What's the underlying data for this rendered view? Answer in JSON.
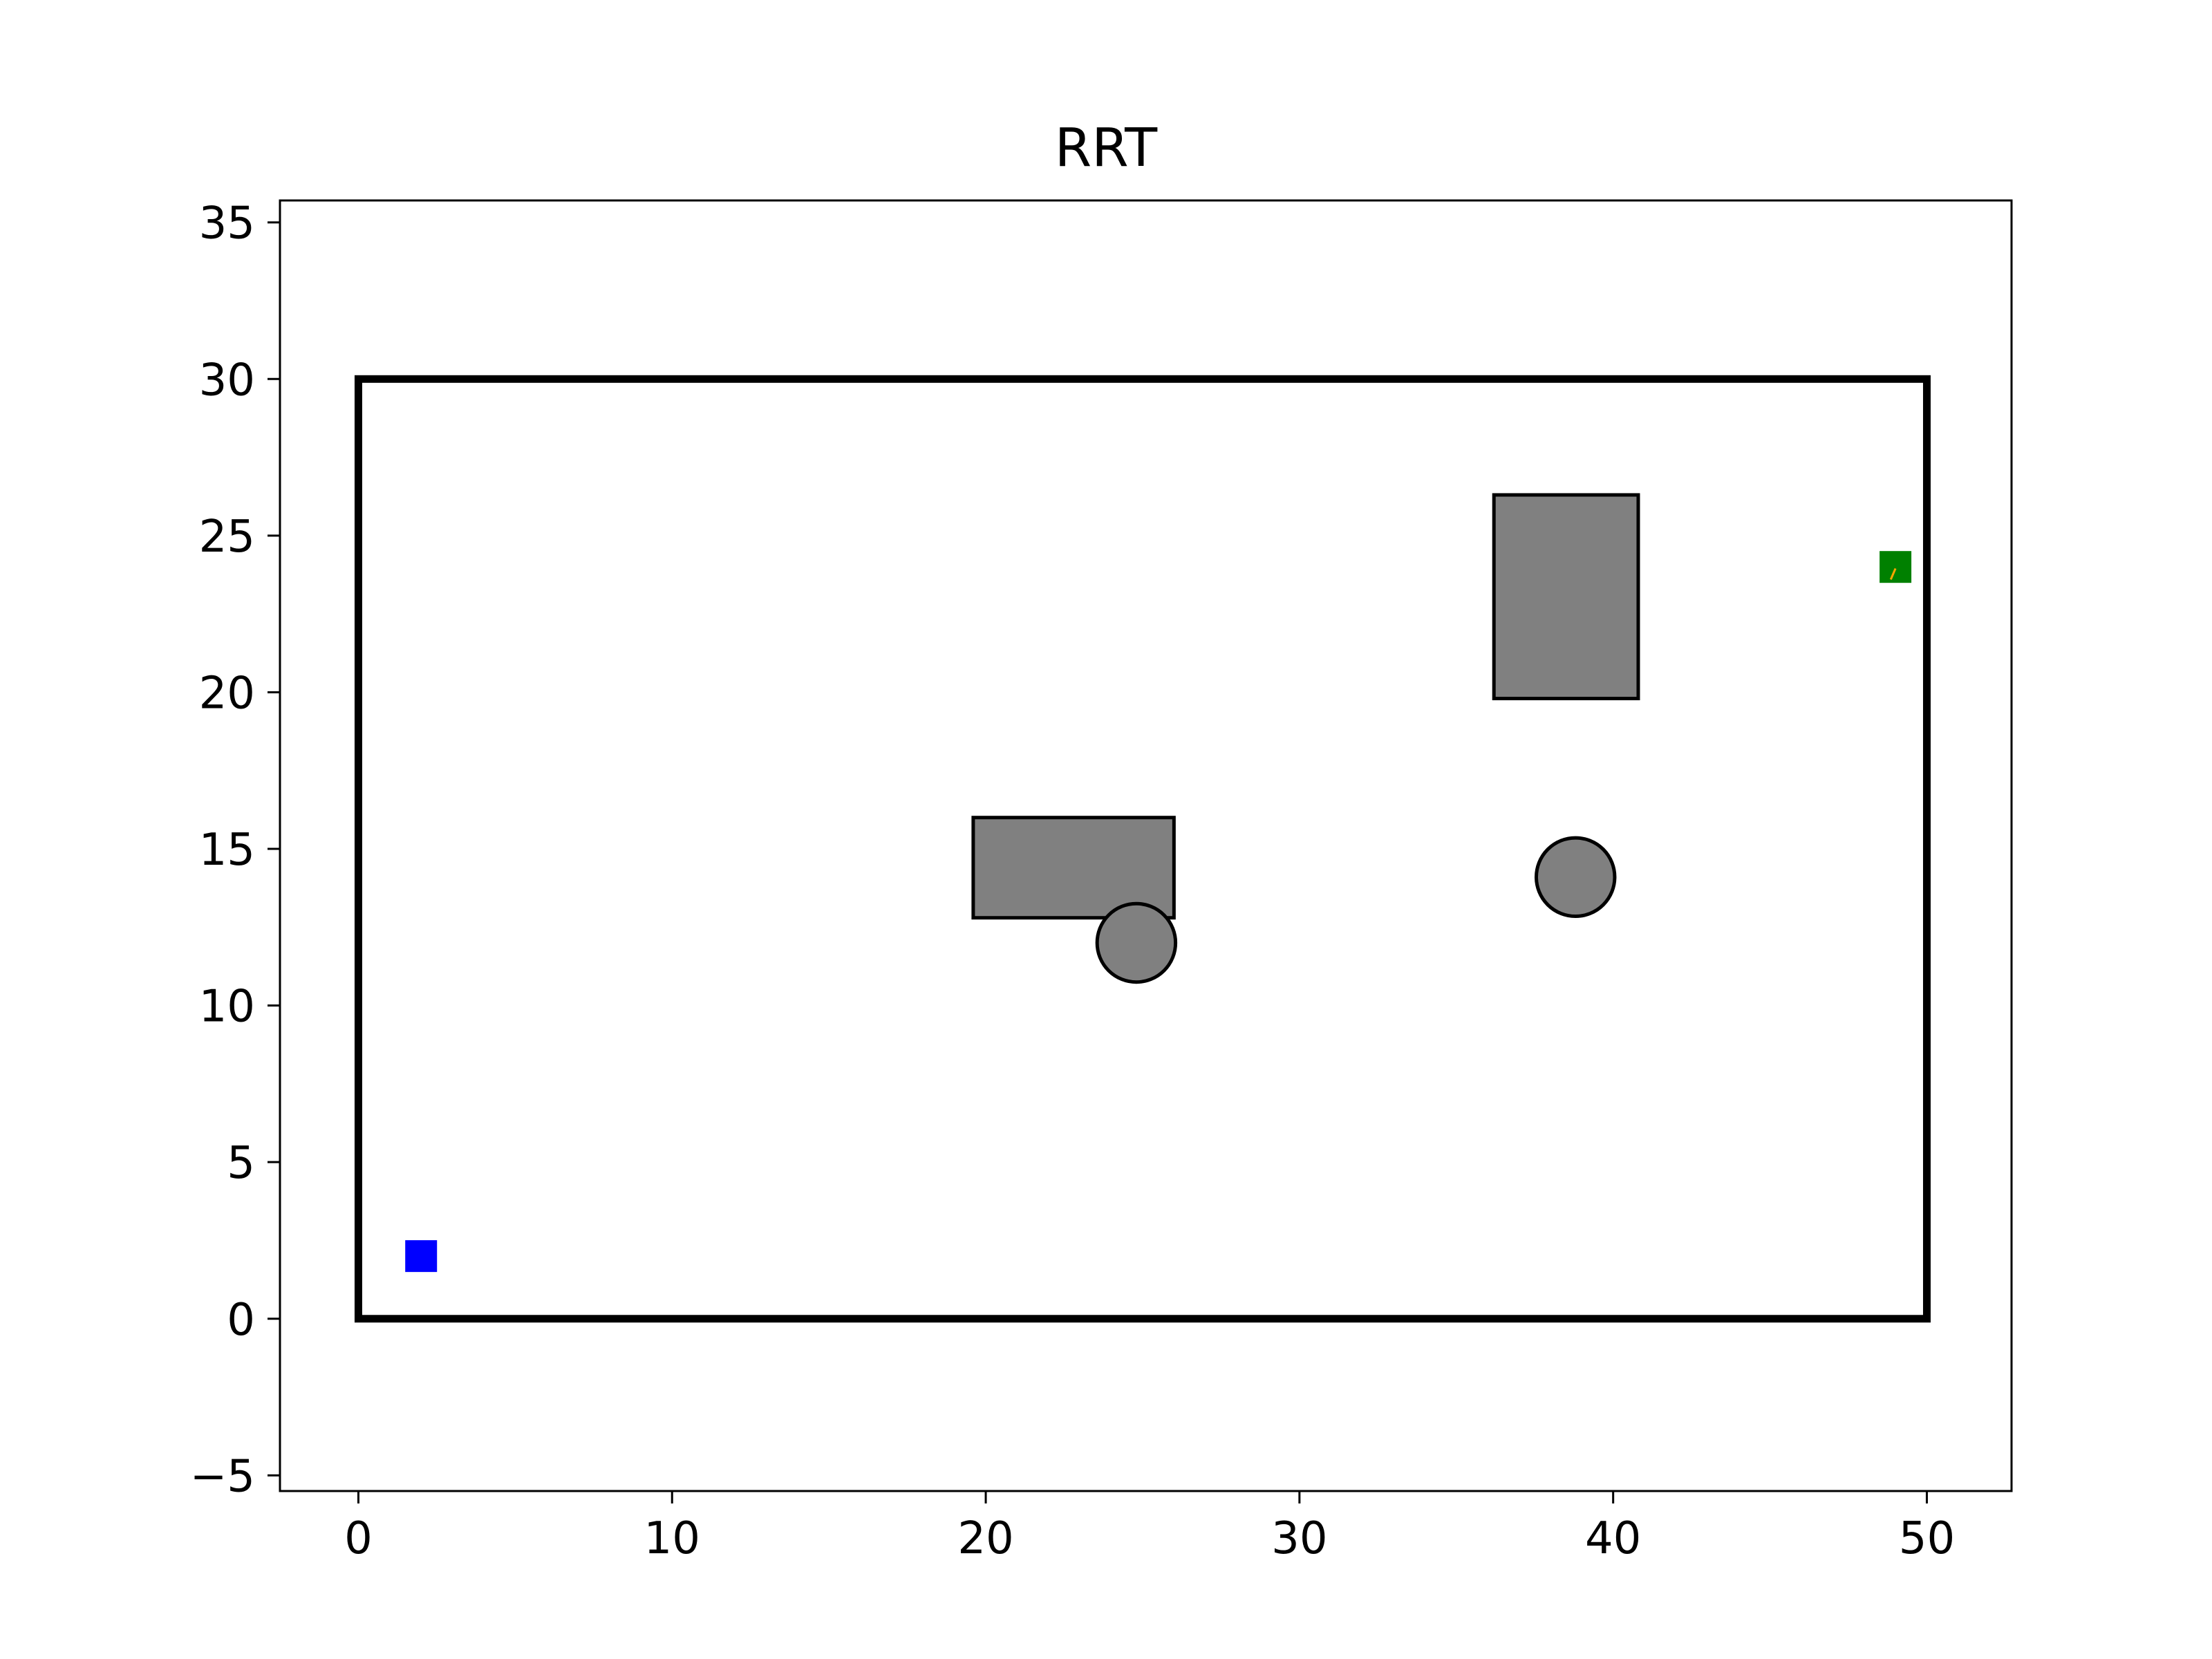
{
  "chart_data": {
    "type": "scatter",
    "title": "RRT",
    "xlabel": "",
    "ylabel": "",
    "xlim": [
      -2.5,
      52.7
    ],
    "ylim": [
      -5.5,
      35.7
    ],
    "xticks": [
      0,
      10,
      20,
      30,
      40,
      50
    ],
    "yticks": [
      -5,
      0,
      5,
      10,
      15,
      20,
      25,
      30,
      35
    ],
    "xtick_labels": [
      "0",
      "10",
      "20",
      "30",
      "40",
      "50"
    ],
    "ytick_labels": [
      "−5",
      "0",
      "5",
      "10",
      "15",
      "20",
      "25",
      "30",
      "35"
    ],
    "grid": false,
    "boundary": {
      "x_min": 0,
      "x_max": 50,
      "y_min": 0,
      "y_max": 30,
      "color": "#000000"
    },
    "rectangles": [
      {
        "name": "obstacle-rect-1",
        "x_min": 19.6,
        "x_max": 26.0,
        "y_min": 12.8,
        "y_max": 16.0,
        "color": "#808080"
      },
      {
        "name": "obstacle-rect-2",
        "x_min": 36.2,
        "x_max": 40.8,
        "y_min": 19.8,
        "y_max": 26.3,
        "color": "#808080"
      }
    ],
    "circles": [
      {
        "name": "obstacle-circle-1",
        "x": 24.8,
        "y": 12.0,
        "r": 1.25,
        "color": "#808080"
      },
      {
        "name": "obstacle-circle-2",
        "x": 38.8,
        "y": 14.1,
        "r": 1.25,
        "color": "#808080"
      }
    ],
    "points": [
      {
        "name": "start-point",
        "x": 2,
        "y": 2,
        "marker": "square",
        "color": "#0000ff"
      },
      {
        "name": "goal-point",
        "x": 49,
        "y": 24,
        "marker": "square",
        "color": "#008000"
      }
    ],
    "path_segment": {
      "x": [
        48.85,
        49.0
      ],
      "y": [
        23.6,
        23.95
      ],
      "color": "#ffa500"
    }
  }
}
